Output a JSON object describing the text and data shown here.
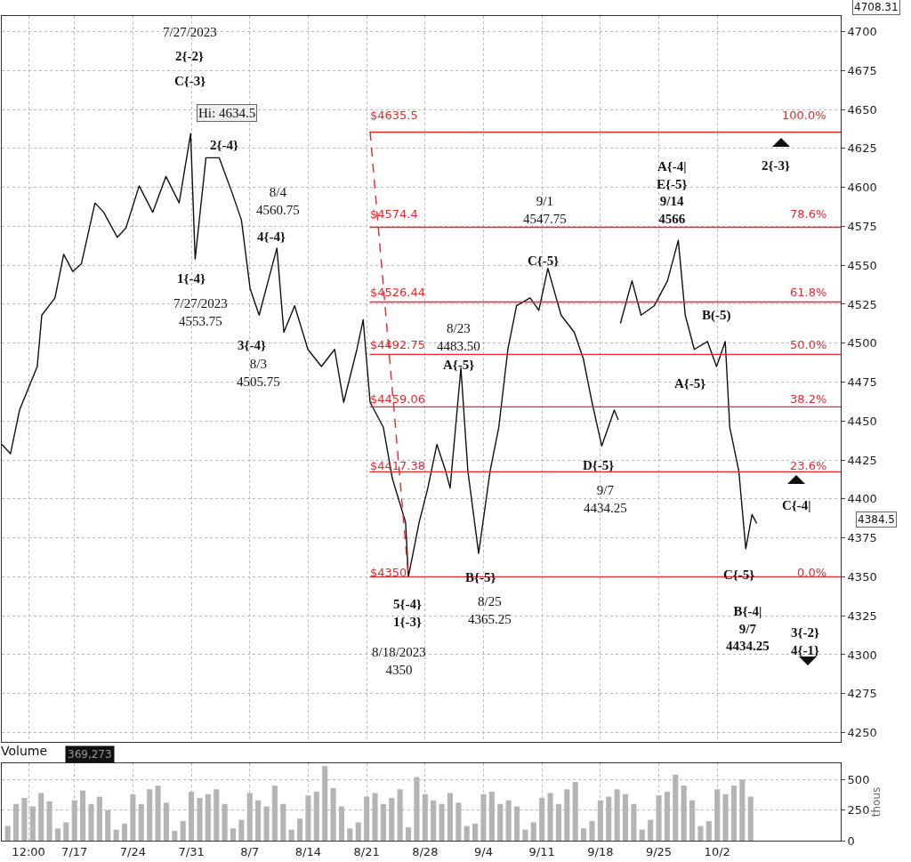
{
  "chart_data": [
    {
      "type": "line",
      "xlim": [
        "2023-07-08T07:00",
        "2023-10-16T19:00"
      ],
      "ylim": [
        4244,
        4710
      ],
      "xticks": [
        {
          "value": "2023-07-11T12:00",
          "label": null
        },
        {
          "value": "2023-07-17",
          "label": null
        },
        {
          "value": "2023-07-24",
          "label": null
        },
        {
          "value": "2023-07-31",
          "label": null
        },
        {
          "value": "2023-08-07",
          "label": null
        },
        {
          "value": "2023-08-14",
          "label": null
        },
        {
          "value": "2023-08-21",
          "label": null
        },
        {
          "value": "2023-08-28",
          "label": null
        },
        {
          "value": "2023-09-04",
          "label": null
        },
        {
          "value": "2023-09-11",
          "label": null
        },
        {
          "value": "2023-09-18",
          "label": null
        },
        {
          "value": "2023-09-25",
          "label": null
        },
        {
          "value": "2023-10-02",
          "label": null
        }
      ],
      "yticks": [
        4250,
        4275,
        4300,
        4325,
        4350,
        4375,
        4400,
        4425,
        4450,
        4475,
        4500,
        4525,
        4550,
        4575,
        4600,
        4625,
        4650,
        4675,
        4700
      ],
      "tick_labels": "y",
      "grid": true,
      "series": [
        {
          "color": "#111111",
          "x": [
            "2023-07-08T07:00",
            "2023-07-09T08:00",
            "2023-07-10T10:00",
            "2023-07-12T13:00",
            "2023-07-13T02:00",
            "2023-07-14T16:00",
            "2023-07-15T17:00",
            "2023-07-16T19:00",
            "2023-07-17T20:00",
            "2023-07-19T11:00",
            "2023-07-20T12:00",
            "2023-07-22T03:00",
            "2023-07-23T04:00",
            "2023-07-24T18:00",
            "2023-07-26T09:00",
            "2023-07-27T23:00",
            "2023-07-29T13:00",
            "2023-07-30T22:00",
            "2023-07-31T11:00",
            "2023-08-01T18:00",
            "2023-08-03T08:00",
            "2023-08-04T22:00",
            "2023-08-06T00:00",
            "2023-08-07T01:00",
            "2023-08-08T03:00",
            "2023-08-09T05:00",
            "2023-08-10T06:00",
            "2023-08-11T02:00",
            "2023-08-12T09:00",
            "2023-08-13T23:00",
            "2023-08-15T14:00",
            "2023-08-17T04:00",
            "2023-08-18T06:00",
            "2023-08-19T20:00",
            "2023-08-20T14:00",
            "2023-08-21T10:00",
            "2023-08-23T00:00",
            "2023-08-24T02:00",
            "2023-08-25T16:00",
            "2023-08-26T00:00",
            "2023-08-27T07:00",
            "2023-08-28T08:00",
            "2023-08-29T10:00",
            "2023-08-30T11:00",
            "2023-08-31T00:00",
            "2023-09-01T07:00",
            "2023-09-02T03:00",
            "2023-09-03T10:00",
            "2023-09-04T19:00",
            "2023-09-05T20:00",
            "2023-09-06T22:00",
            "2023-09-07T23:00",
            "2023-09-09T14:00",
            "2023-09-10T15:00",
            "2023-09-11T17:00",
            "2023-09-13T07:00",
            "2023-09-14T21:00",
            "2023-09-15T23:00",
            "2023-09-17T00:00",
            "2023-09-18T04:00",
            "2023-09-19T16:00",
            "2023-09-20T03:00",
            "2023-09-20T06:00",
            "2023-09-20T10:00",
            "2023-09-21T19:00",
            "2023-09-22T21:00",
            "2023-09-24T11:00",
            "2023-09-26T01:00",
            "2023-09-27T08:00",
            "2023-09-28T04:00",
            "2023-09-29T06:00",
            "2023-09-30T20:00",
            "2023-10-01T22:00",
            "2023-10-02T23:00",
            "2023-10-03T12:00",
            "2023-10-04T14:00",
            "2023-10-05T10:00",
            "2023-10-06T04:00",
            "2023-10-06T17:00"
          ],
          "values": [
            4435,
            4429,
            4457,
            4485,
            4518,
            4529,
            4557,
            4546,
            4551,
            4590,
            4584,
            4568,
            4574,
            4601,
            4584,
            4607,
            4590,
            4634.5,
            4554,
            4619,
            4619,
            4596,
            4579,
            4535,
            4518,
            4540,
            4561,
            4507,
            4524,
            4496,
            4485,
            4496,
            4462,
            4496,
            4515,
            4462,
            4446,
            4413,
            4385,
            4350,
            4385,
            4407,
            4435,
            4418,
            4407,
            4484,
            4418,
            4365,
            4418,
            4446,
            4496,
            4524,
            4529,
            4521,
            4548,
            4518,
            4507,
            4490,
            4462,
            4434,
            4457,
            4451,
            null,
            4513,
            4540,
            4518,
            4524,
            4540,
            4566,
            4518,
            4496,
            4501,
            4485,
            4501,
            4446,
            4418,
            4368,
            4390,
            4384.5
          ]
        },
        {
          "color": "#e8262b",
          "x": [
            "2023-08-21T10:00",
            "2023-10-16T19:00"
          ],
          "values": [
            4635.5,
            4635.5
          ]
        },
        {
          "color": "#e8262b",
          "x": [
            "2023-08-21T10:00",
            "2023-10-16T19:00"
          ],
          "values": [
            4574.4,
            4574.4
          ]
        },
        {
          "color": "#e8262b",
          "x": [
            "2023-08-21T10:00",
            "2023-10-16T19:00"
          ],
          "values": [
            4526.44,
            4526.44
          ]
        },
        {
          "color": "#e8262b",
          "x": [
            "2023-08-21T10:00",
            "2023-10-16T19:00"
          ],
          "values": [
            4492.75,
            4492.75
          ]
        },
        {
          "color": "#e8262b",
          "x": [
            "2023-08-21T10:00",
            "2023-10-16T19:00"
          ],
          "values": [
            4459.06,
            4459.06
          ]
        },
        {
          "color": "#e8262b",
          "x": [
            "2023-08-21T10:00",
            "2023-10-16T19:00"
          ],
          "values": [
            4417.38,
            4417.38
          ]
        },
        {
          "color": "#e8262b",
          "x": [
            "2023-08-21T10:00",
            "2023-10-16T19:00"
          ],
          "values": [
            4350,
            4350
          ]
        },
        {
          "color": "#e8262b",
          "line_style": "dashed",
          "x": [
            "2023-08-21T10:00",
            "2023-08-26T00:00"
          ],
          "values": [
            4635.5,
            4350
          ]
        }
      ],
      "annotations": [
        "7/27/2023",
        "2{-2}",
        "C{-3}",
        "Hi: 4634.5",
        "2{-4}",
        "8/4\n4560.75",
        "4{-4}",
        "1{-4}",
        "7/27/2023\n4553.75",
        "3{-4}",
        "8/3\n4505.75",
        "8/23\n4483.50",
        "A{-5}",
        "9/1\n4547.75",
        "C{-5}",
        "A{-4|\nE{-5}\n9/14\n4566",
        "B(-5)",
        "A{-5}",
        "D{-5}",
        "9/7\n4434.25",
        "B{-5}",
        "8/25\n4365.25",
        "5{-4}\n1{-3}",
        "8/18/2023\n4350",
        "C{-5}",
        "B{-4|\n9/7\n4434.25",
        "2{-3}",
        "C{-4|",
        "3{-2}\n4{-1}",
        "$4635.5",
        "$4574.4",
        "$4526.44",
        "$4492.75",
        "$4459.06",
        "$4417.38",
        "$4350",
        "100.0%",
        "78.6%",
        "61.8%",
        "50.0%",
        "38.2%",
        "23.6%",
        "0.0%",
        "4708.31",
        "4384.5"
      ]
    },
    {
      "type": "bar",
      "title": "Volume",
      "annotations": [
        "369,273"
      ],
      "ylabel": "thous",
      "color": "#b4b4b4",
      "grid": true,
      "xlim": [
        "2023-07-08T07:00",
        "2023-10-16T19:00"
      ],
      "ylim": [
        0,
        633
      ],
      "yticks": [
        0,
        250,
        500
      ],
      "xticks": [
        {
          "value": "2023-07-11T12:00",
          "label": "12:00"
        },
        {
          "value": "2023-07-17",
          "label": "7/17"
        },
        {
          "value": "2023-07-24",
          "label": "7/24"
        },
        {
          "value": "2023-07-31",
          "label": "7/31"
        },
        {
          "value": "2023-08-07",
          "label": "8/7"
        },
        {
          "value": "2023-08-14",
          "label": "8/14"
        },
        {
          "value": "2023-08-21",
          "label": "8/21"
        },
        {
          "value": "2023-08-28",
          "label": "8/28"
        },
        {
          "value": "2023-09-04",
          "label": "9/4"
        },
        {
          "value": "2023-09-11",
          "label": "9/11"
        },
        {
          "value": "2023-09-18",
          "label": "9/18"
        },
        {
          "value": "2023-09-25",
          "label": "9/25"
        },
        {
          "value": "2023-10-02",
          "label": "10/2"
        }
      ],
      "x": [
        "2023-07-09",
        "2023-07-10",
        "2023-07-11",
        "2023-07-12",
        "2023-07-13",
        "2023-07-14",
        "2023-07-15",
        "2023-07-16",
        "2023-07-17",
        "2023-07-18",
        "2023-07-19",
        "2023-07-20",
        "2023-07-21",
        "2023-07-22",
        "2023-07-23",
        "2023-07-24",
        "2023-07-25",
        "2023-07-26",
        "2023-07-27",
        "2023-07-28",
        "2023-07-29",
        "2023-07-30",
        "2023-07-31",
        "2023-08-01",
        "2023-08-02",
        "2023-08-03",
        "2023-08-04",
        "2023-08-05",
        "2023-08-06",
        "2023-08-07",
        "2023-08-08",
        "2023-08-09",
        "2023-08-10",
        "2023-08-11",
        "2023-08-12",
        "2023-08-13",
        "2023-08-14",
        "2023-08-15",
        "2023-08-16",
        "2023-08-17",
        "2023-08-18",
        "2023-08-19",
        "2023-08-20",
        "2023-08-21",
        "2023-08-22",
        "2023-08-23",
        "2023-08-24",
        "2023-08-25",
        "2023-08-26",
        "2023-08-27",
        "2023-08-28",
        "2023-08-29",
        "2023-08-30",
        "2023-08-31",
        "2023-09-01",
        "2023-09-02",
        "2023-09-03",
        "2023-09-04",
        "2023-09-05",
        "2023-09-06",
        "2023-09-07",
        "2023-09-08",
        "2023-09-09",
        "2023-09-10",
        "2023-09-11",
        "2023-09-12",
        "2023-09-13",
        "2023-09-14",
        "2023-09-15",
        "2023-09-16",
        "2023-09-17",
        "2023-09-18",
        "2023-09-19",
        "2023-09-20",
        "2023-09-21",
        "2023-09-22",
        "2023-09-23",
        "2023-09-24",
        "2023-09-25",
        "2023-09-26",
        "2023-09-27",
        "2023-09-28",
        "2023-09-29",
        "2023-09-30",
        "2023-10-01",
        "2023-10-02",
        "2023-10-03",
        "2023-10-04",
        "2023-10-05",
        "2023-10-06"
      ],
      "values": [
        120,
        300,
        350,
        280,
        390,
        320,
        100,
        150,
        330,
        410,
        300,
        360,
        250,
        90,
        140,
        380,
        300,
        420,
        450,
        310,
        80,
        160,
        400,
        350,
        380,
        420,
        300,
        100,
        170,
        390,
        330,
        280,
        450,
        300,
        90,
        180,
        370,
        400,
        610,
        430,
        280,
        100,
        150,
        360,
        390,
        300,
        350,
        420,
        110,
        520,
        380,
        330,
        300,
        390,
        310,
        120,
        140,
        380,
        400,
        300,
        330,
        280,
        90,
        150,
        350,
        390,
        300,
        420,
        480,
        100,
        160,
        330,
        360,
        420,
        380,
        300,
        90,
        170,
        370,
        400,
        540,
        450,
        330,
        120,
        160,
        420,
        380,
        450,
        500,
        360
      ]
    }
  ]
}
